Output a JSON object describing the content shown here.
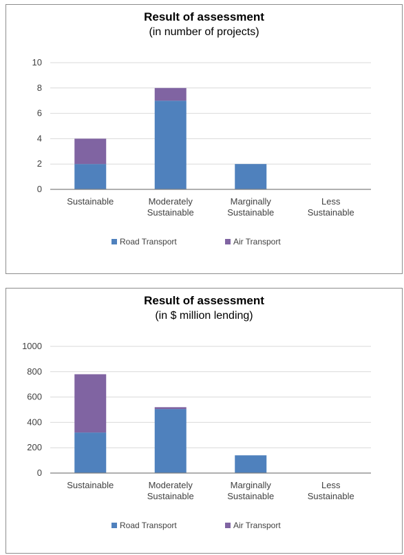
{
  "chart_data": [
    {
      "type": "bar",
      "stacked": true,
      "title": "Result of assessment",
      "subtitle": "(in number of projects)",
      "categories": [
        [
          "Sustainable"
        ],
        [
          "Moderately",
          "Sustainable"
        ],
        [
          "Marginally",
          "Sustainable"
        ],
        [
          "Less",
          "Sustainable"
        ]
      ],
      "series": [
        {
          "name": "Road Transport",
          "color": "#4f81bd",
          "values": [
            2,
            7,
            2,
            0
          ]
        },
        {
          "name": "Air Transport",
          "color": "#8064a2",
          "values": [
            2,
            1,
            0,
            0
          ]
        }
      ],
      "ylim": [
        0,
        10
      ],
      "yticks": [
        0,
        2,
        4,
        6,
        8,
        10
      ],
      "grid": true,
      "legend": "bottom"
    },
    {
      "type": "bar",
      "stacked": true,
      "title": "Result of assessment",
      "subtitle": "(in $ million lending)",
      "categories": [
        [
          "Sustainable"
        ],
        [
          "Moderately",
          "Sustainable"
        ],
        [
          "Marginally",
          "Sustainable"
        ],
        [
          "Less",
          "Sustainable"
        ]
      ],
      "series": [
        {
          "name": "Road Transport",
          "color": "#4f81bd",
          "values": [
            320,
            505,
            140,
            0
          ]
        },
        {
          "name": "Air Transport",
          "color": "#8064a2",
          "values": [
            460,
            15,
            0,
            0
          ]
        }
      ],
      "ylim": [
        0,
        1000
      ],
      "yticks": [
        0,
        200,
        400,
        600,
        800,
        1000
      ],
      "grid": true,
      "legend": "bottom"
    }
  ]
}
